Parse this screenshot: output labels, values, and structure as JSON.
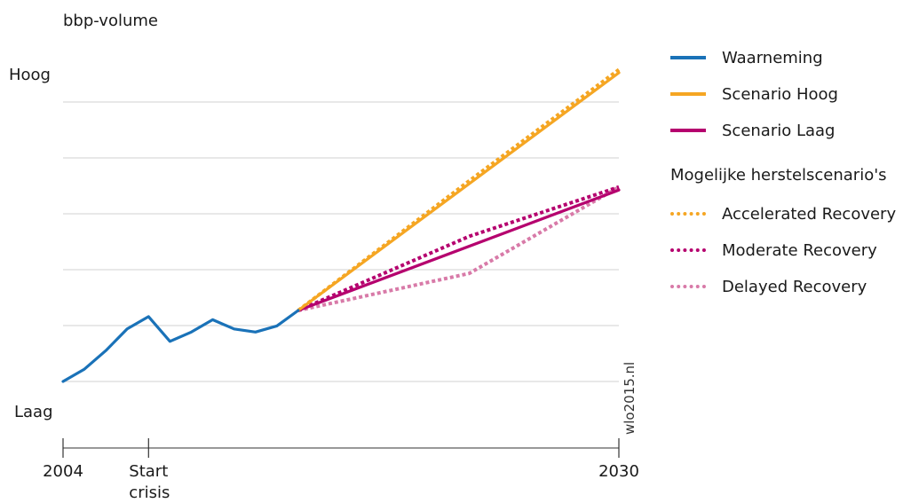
{
  "chart_data": {
    "type": "line",
    "title": "bbp-volume",
    "y_labels": {
      "high": "Hoog",
      "low": "Laag"
    },
    "x_ticks": [
      {
        "label": "2004",
        "x": 2004
      },
      {
        "label": "Start crisis",
        "x": 2008
      },
      {
        "label": "2030",
        "x": 2030
      }
    ],
    "xlim": [
      2004,
      2030
    ],
    "ylim": [
      0,
      100
    ],
    "grid": true,
    "legend_placement": "right",
    "series": [
      {
        "key": "waarneming",
        "name": "Waarneming",
        "color": "#1a72b8",
        "dash": "solid",
        "points": [
          [
            2004,
            0
          ],
          [
            2005,
            4
          ],
          [
            2006,
            10
          ],
          [
            2007,
            17
          ],
          [
            2008,
            21
          ],
          [
            2009,
            13
          ],
          [
            2010,
            16
          ],
          [
            2011,
            20
          ],
          [
            2012,
            17
          ],
          [
            2013,
            16
          ],
          [
            2014,
            18
          ],
          [
            2015,
            23
          ]
        ]
      },
      {
        "key": "scenario_hoog",
        "name": "Scenario Hoog",
        "color": "#f5a623",
        "dash": "solid",
        "points": [
          [
            2015,
            23
          ],
          [
            2030,
            100
          ]
        ]
      },
      {
        "key": "scenario_laag",
        "name": "Scenario Laag",
        "color": "#b5006e",
        "dash": "solid",
        "points": [
          [
            2015,
            23
          ],
          [
            2030,
            62
          ]
        ]
      },
      {
        "key": "accelerated",
        "name": "Accelerated Recovery",
        "color": "#f5a623",
        "dash": "dotted",
        "points": [
          [
            2015,
            23
          ],
          [
            2023,
            65
          ],
          [
            2030,
            101
          ]
        ]
      },
      {
        "key": "moderate",
        "name": "Moderate Recovery",
        "color": "#b5006e",
        "dash": "dotted",
        "points": [
          [
            2015,
            23
          ],
          [
            2023,
            47
          ],
          [
            2030,
            63
          ]
        ]
      },
      {
        "key": "delayed",
        "name": "Delayed Recovery",
        "color": "#d87aa8",
        "dash": "dotted",
        "points": [
          [
            2015,
            23
          ],
          [
            2023,
            35
          ],
          [
            2030,
            63
          ]
        ]
      }
    ]
  },
  "legend": {
    "subtitle": "Mogelijke herstelscenario's"
  },
  "watermark": "wlo2015.nl"
}
